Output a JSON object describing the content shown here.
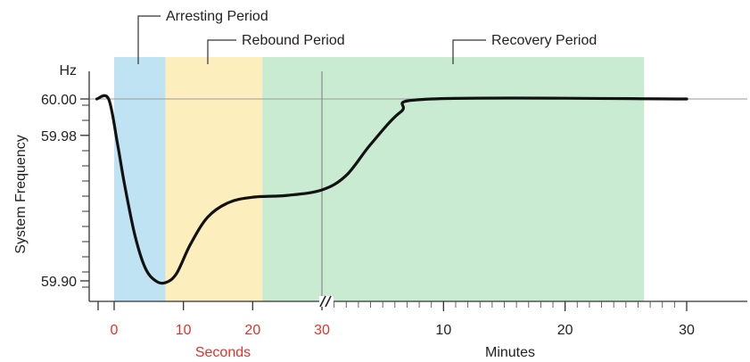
{
  "chart_data": {
    "type": "line",
    "ylabel": "System Frequency",
    "yunit": "Hz",
    "y_ticks": [
      "60.00",
      "59.98",
      "59.90"
    ],
    "ylim": [
      59.895,
      60.002
    ],
    "segments": [
      {
        "scale": "Seconds",
        "x_ticks": [
          "0",
          "10",
          "20",
          "30"
        ],
        "xlim": [
          0,
          30
        ]
      },
      {
        "scale": "Minutes",
        "x_ticks": [
          "10",
          "20",
          "30"
        ],
        "xlim": [
          0,
          30
        ]
      }
    ],
    "periods": [
      {
        "name": "Arresting Period",
        "color": "#bfe3f2",
        "start": {
          "scale": "Seconds",
          "x": 0
        },
        "end": {
          "scale": "Seconds",
          "x": 7.4
        }
      },
      {
        "name": "Rebound Period",
        "color": "#fdeebd",
        "start": {
          "scale": "Seconds",
          "x": 7.4
        },
        "end": {
          "scale": "Seconds",
          "x": 21.4
        }
      },
      {
        "name": "Recovery Period",
        "color": "#c9ebd2",
        "start": {
          "scale": "Seconds",
          "x": 21.4
        },
        "end": {
          "scale": "Minutes",
          "x": 26.5
        }
      }
    ],
    "series": [
      {
        "color": "#111111",
        "points": [
          {
            "scale": "Seconds",
            "x": -2.5,
            "y": 60.0
          },
          {
            "scale": "Seconds",
            "x": -0.8,
            "y": 60.0
          },
          {
            "scale": "Seconds",
            "x": 0.5,
            "y": 59.975
          },
          {
            "scale": "Seconds",
            "x": 1.5,
            "y": 59.953
          },
          {
            "scale": "Seconds",
            "x": 3.0,
            "y": 59.925
          },
          {
            "scale": "Seconds",
            "x": 4.5,
            "y": 59.907
          },
          {
            "scale": "Seconds",
            "x": 6.0,
            "y": 59.9
          },
          {
            "scale": "Seconds",
            "x": 7.4,
            "y": 59.899
          },
          {
            "scale": "Seconds",
            "x": 9.0,
            "y": 59.904
          },
          {
            "scale": "Seconds",
            "x": 11.0,
            "y": 59.92
          },
          {
            "scale": "Seconds",
            "x": 13.5,
            "y": 59.935
          },
          {
            "scale": "Seconds",
            "x": 16.5,
            "y": 59.943
          },
          {
            "scale": "Seconds",
            "x": 20.0,
            "y": 59.946
          },
          {
            "scale": "Seconds",
            "x": 25.0,
            "y": 59.947
          },
          {
            "scale": "Seconds",
            "x": 30.0,
            "y": 59.95
          },
          {
            "scale": "Minutes",
            "x": 2.0,
            "y": 59.958
          },
          {
            "scale": "Minutes",
            "x": 4.0,
            "y": 59.975
          },
          {
            "scale": "Minutes",
            "x": 6.5,
            "y": 59.993
          },
          {
            "scale": "Minutes",
            "x": 9.0,
            "y": 60.0
          },
          {
            "scale": "Minutes",
            "x": 30.0,
            "y": 60.0
          }
        ]
      }
    ],
    "reference_lines": [
      {
        "axis": "y",
        "value": 60.0
      },
      {
        "axis": "x",
        "scale": "Seconds",
        "value": 30
      }
    ],
    "axis_break": "//",
    "colors": {
      "seconds_labels": "#e0322c",
      "minutes_labels": "#222222",
      "line": "#111111",
      "axis": "#333333"
    }
  }
}
